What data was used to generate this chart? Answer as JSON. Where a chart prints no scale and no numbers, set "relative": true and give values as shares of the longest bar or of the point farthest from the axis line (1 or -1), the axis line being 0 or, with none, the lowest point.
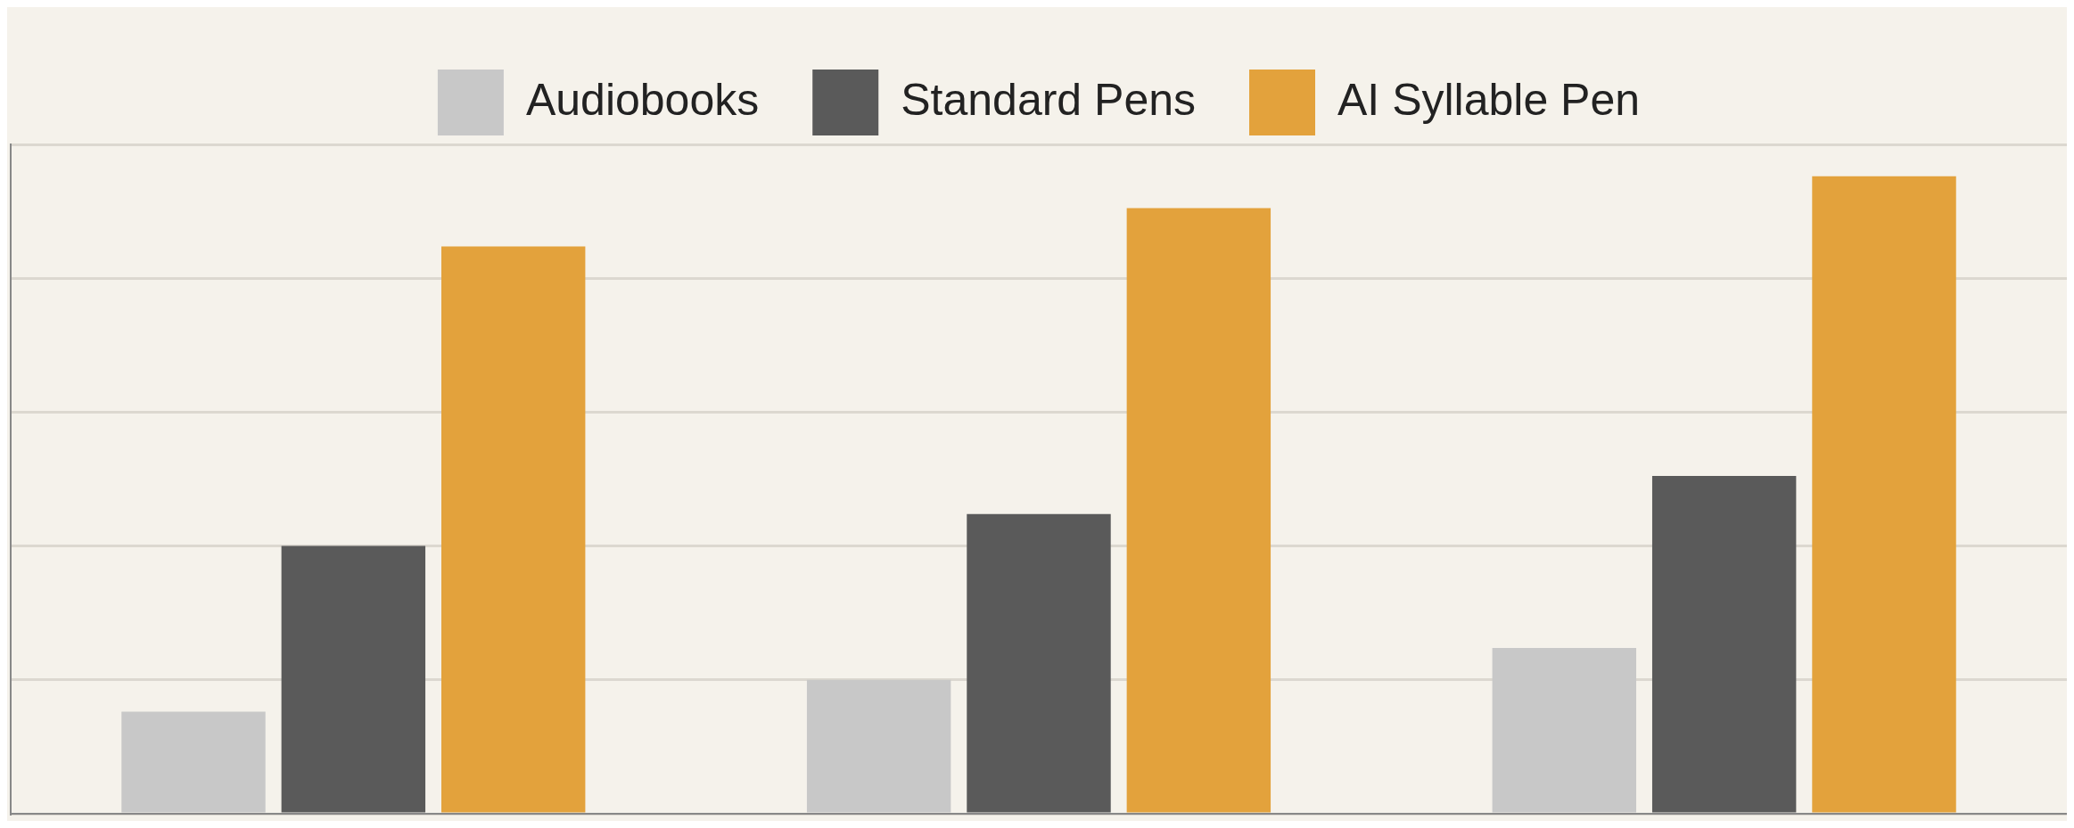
{
  "chart_data": {
    "type": "bar",
    "relative": true,
    "categories": [
      null,
      null,
      null
    ],
    "series": [
      {
        "name": "Audiobooks",
        "color": "#c8c8c8",
        "values": [
          0.16,
          0.21,
          0.26
        ]
      },
      {
        "name": "Standard Pens",
        "color": "#5a5a5a",
        "values": [
          0.42,
          0.47,
          0.53
        ]
      },
      {
        "name": "AI Syllable Pen",
        "color": "#e3a23c",
        "values": [
          0.89,
          0.95,
          1
        ]
      }
    ],
    "grid": "y",
    "legend": "top"
  }
}
